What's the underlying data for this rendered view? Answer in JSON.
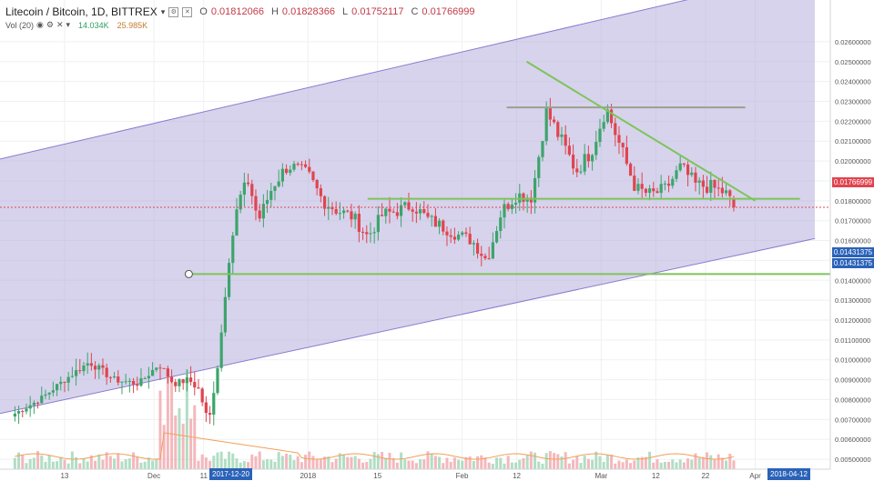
{
  "header": {
    "symbol": "Litecoin / Bitcoin, 1D, BITTREX",
    "open_key": "O",
    "open": "0.01812066",
    "high_key": "H",
    "high": "0.01828366",
    "low_key": "L",
    "low": "0.01752117",
    "close_key": "C",
    "close": "0.01766999"
  },
  "volume": {
    "label": "Vol (20)",
    "v1": "14.034K",
    "v2": "25.985K"
  },
  "colors": {
    "up": "#3da46c",
    "down": "#e0444f",
    "channel": "#b7aedc",
    "trend": "#7dc45a"
  },
  "price_tags": {
    "last": "0.01766999",
    "level_a": "0.01431375",
    "level_b": "0.01431375"
  },
  "date_tags": {
    "start": "2017-12-20",
    "end": "2018-04-12"
  },
  "chart_data": {
    "type": "candlestick",
    "y_axis": {
      "range": [
        0.0045,
        0.0281
      ],
      "ticks": [
        "0.02600000",
        "0.02500000",
        "0.02400000",
        "0.02300000",
        "0.02200000",
        "0.02100000",
        "0.02000000",
        "0.01900000",
        "0.01800000",
        "0.01700000",
        "0.01600000",
        "0.01500000",
        "0.01400000",
        "0.01300000",
        "0.01200000",
        "0.01100000",
        "0.01000000",
        "0.00900000",
        "0.00800000",
        "0.00700000",
        "0.00600000",
        "0.00500000"
      ],
      "tick_values": [
        0.026,
        0.025,
        0.024,
        0.023,
        0.022,
        0.021,
        0.02,
        0.019,
        0.018,
        0.017,
        0.016,
        0.015,
        0.014,
        0.013,
        0.012,
        0.011,
        0.01,
        0.009,
        0.008,
        0.007,
        0.006,
        0.005
      ]
    },
    "x_axis": {
      "tick_labels": [
        "13",
        "Dec",
        "11",
        "2018",
        "15",
        "Feb",
        "12",
        "Mar",
        "12",
        "22",
        "Apr"
      ]
    },
    "close_path": [
      [
        "2017-11-03",
        0.0073
      ],
      [
        "2017-11-08",
        0.008
      ],
      [
        "2017-11-13",
        0.009
      ],
      [
        "2017-11-18",
        0.0099
      ],
      [
        "2017-11-23",
        0.009
      ],
      [
        "2017-11-28",
        0.0088
      ],
      [
        "2017-12-02",
        0.0098
      ],
      [
        "2017-12-05",
        0.0088
      ],
      [
        "2017-12-08",
        0.009
      ],
      [
        "2017-12-10",
        0.0085
      ],
      [
        "2017-12-12",
        0.0068
      ],
      [
        "2017-12-14",
        0.01
      ],
      [
        "2017-12-16",
        0.015
      ],
      [
        "2017-12-18",
        0.018
      ],
      [
        "2017-12-20",
        0.019
      ],
      [
        "2017-12-22",
        0.017
      ],
      [
        "2017-12-25",
        0.0188
      ],
      [
        "2017-12-28",
        0.0198
      ],
      [
        "2018-01-01",
        0.0193
      ],
      [
        "2018-01-04",
        0.018
      ],
      [
        "2018-01-07",
        0.0175
      ],
      [
        "2018-01-10",
        0.0172
      ],
      [
        "2018-01-13",
        0.0162
      ],
      [
        "2018-01-16",
        0.0173
      ],
      [
        "2018-01-19",
        0.0175
      ],
      [
        "2018-01-22",
        0.0178
      ],
      [
        "2018-01-25",
        0.0171
      ],
      [
        "2018-01-28",
        0.0167
      ],
      [
        "2018-01-31",
        0.0163
      ],
      [
        "2018-02-03",
        0.016
      ],
      [
        "2018-02-06",
        0.015
      ],
      [
        "2018-02-09",
        0.0175
      ],
      [
        "2018-02-12",
        0.0183
      ],
      [
        "2018-02-15",
        0.0182
      ],
      [
        "2018-02-18",
        0.0225
      ],
      [
        "2018-02-21",
        0.021
      ],
      [
        "2018-02-24",
        0.0195
      ],
      [
        "2018-02-27",
        0.0205
      ],
      [
        "2018-03-02",
        0.0227
      ],
      [
        "2018-03-05",
        0.0206
      ],
      [
        "2018-03-08",
        0.0186
      ],
      [
        "2018-03-11",
        0.0183
      ],
      [
        "2018-03-14",
        0.0186
      ],
      [
        "2018-03-17",
        0.0197
      ],
      [
        "2018-03-20",
        0.0188
      ],
      [
        "2018-03-23",
        0.0187
      ],
      [
        "2018-03-26",
        0.0184
      ],
      [
        "2018-03-28",
        0.0176
      ]
    ],
    "last_candle": {
      "open": 0.01812066,
      "high": 0.01828366,
      "low": 0.01752117,
      "close": 0.01766999
    },
    "annotations": {
      "channel_upper": [
        [
          "2017-10-31",
          0.0201
        ],
        [
          "2018-04-13",
          0.0296
        ]
      ],
      "channel_lower": [
        [
          "2017-10-31",
          0.0073
        ],
        [
          "2018-04-13",
          0.0161
        ]
      ],
      "descending_trendline": [
        [
          "2018-02-14",
          0.025
        ],
        [
          "2018-04-01",
          0.018
        ]
      ],
      "resistance_2": [
        [
          "2018-02-10",
          0.0227
        ],
        [
          "2018-03-30",
          0.0227
        ]
      ],
      "resistance_1": [
        [
          "2018-01-13",
          0.0181
        ],
        [
          "2018-04-10",
          0.0181
        ]
      ],
      "support": [
        [
          "2017-12-08",
          0.01431375
        ],
        [
          "2018-04-26",
          0.01431375
        ]
      ],
      "last_price": 0.01766999
    },
    "volume": {
      "series": [
        "volume",
        "MA(20)"
      ],
      "ma_values": [
        "14.034K",
        "25.985K"
      ]
    }
  }
}
